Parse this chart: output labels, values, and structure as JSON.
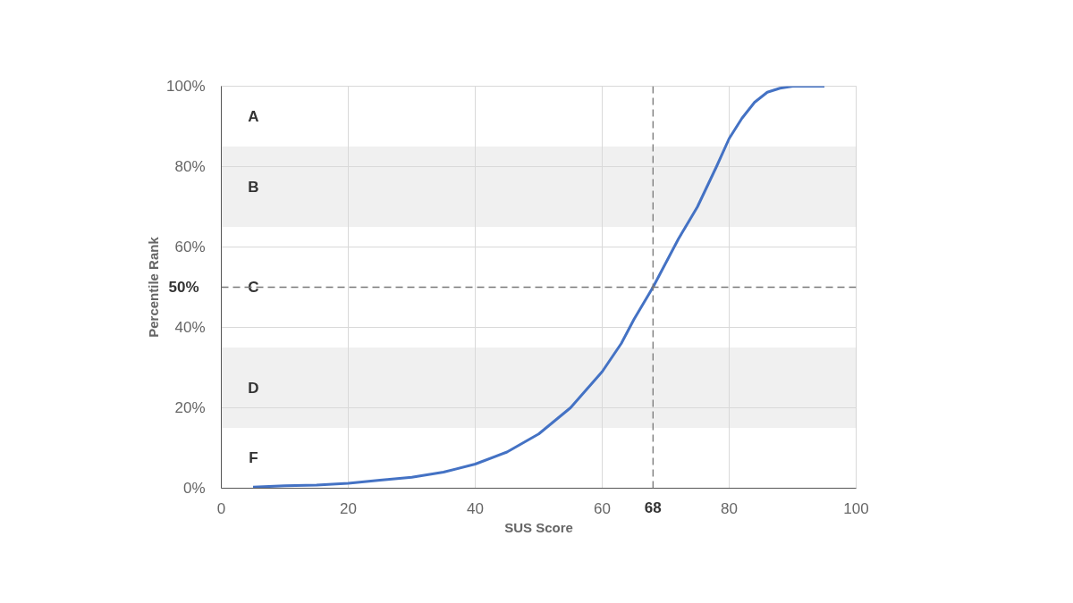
{
  "chart_data": {
    "type": "line",
    "xlabel": "SUS Score",
    "ylabel": "Percentile Rank",
    "x": [
      5,
      10,
      15,
      20,
      25,
      30,
      35,
      40,
      45,
      50,
      55,
      60,
      63,
      65,
      68,
      70,
      72,
      75,
      78,
      80,
      82,
      84,
      86,
      88,
      90,
      93,
      95
    ],
    "series": [
      {
        "color": "#4472c4",
        "values": [
          0.3,
          0.6,
          0.8,
          1.2,
          2,
          2.7,
          4,
          6,
          9,
          13.5,
          20,
          29,
          36,
          42,
          50,
          56,
          62,
          70,
          80,
          87,
          92,
          96,
          98.5,
          99.5,
          100,
          100,
          100
        ]
      }
    ],
    "xlim": [
      0,
      100
    ],
    "xticks": [
      0,
      20,
      40,
      60,
      80,
      100
    ],
    "ylim": [
      0,
      100
    ],
    "yticks": [
      {
        "value": 0,
        "label": "0%"
      },
      {
        "value": 20,
        "label": "20%"
      },
      {
        "value": 40,
        "label": "40%"
      },
      {
        "value": 60,
        "label": "60%"
      },
      {
        "value": 80,
        "label": "80%"
      },
      {
        "value": 100,
        "label": "100%"
      }
    ],
    "grid": true,
    "marker": "none",
    "line_style": "solid",
    "bands": [
      {
        "axis": "y",
        "from": 85,
        "to": 100,
        "label": "A",
        "color": "#ffffff"
      },
      {
        "axis": "y",
        "from": 65,
        "to": 85,
        "label": "B",
        "color": "#f0f0f0"
      },
      {
        "axis": "y",
        "from": 35,
        "to": 65,
        "label": "C",
        "color": "#ffffff"
      },
      {
        "axis": "y",
        "from": 15,
        "to": 35,
        "label": "D",
        "color": "#f0f0f0"
      },
      {
        "axis": "y",
        "from": 0,
        "to": 15,
        "label": "F",
        "color": "#ffffff"
      }
    ],
    "ref_lines": [
      {
        "axis": "x",
        "value": 68,
        "label": "68",
        "color": "#777777",
        "line_style": "dashed"
      },
      {
        "axis": "y",
        "value": 50,
        "label": "50%",
        "color": "#777777",
        "line_style": "dashed"
      }
    ]
  }
}
